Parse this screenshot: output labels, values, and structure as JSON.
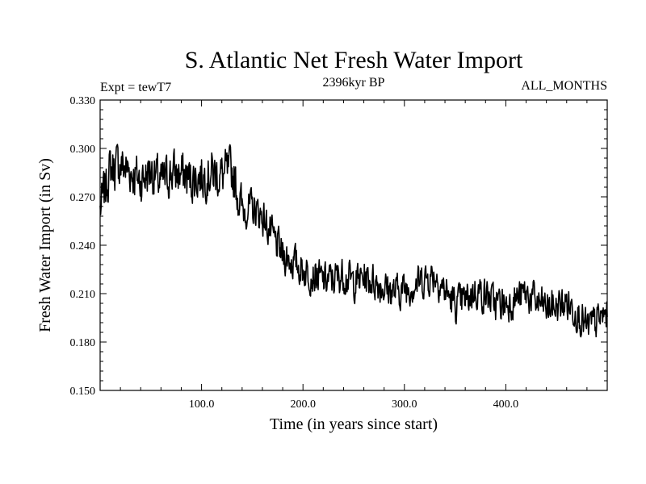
{
  "chart_data": {
    "type": "line",
    "title": "S. Atlantic Net Fresh Water Import",
    "subtitle_left": "Expt = tewT7",
    "subtitle_center": "2396kyr BP",
    "subtitle_right": "ALL_MONTHS",
    "xlabel": "Time (in years since start)",
    "ylabel": "Fresh Water Import (in Sv)",
    "xlim": [
      0,
      500
    ],
    "ylim": [
      0.15,
      0.33
    ],
    "x_major_ticks": [
      100,
      200,
      300,
      400
    ],
    "x_tick_labels": [
      "100.0",
      "200.0",
      "300.0",
      "400.0"
    ],
    "y_major_ticks": [
      0.15,
      0.18,
      0.21,
      0.24,
      0.27,
      0.3,
      0.33
    ],
    "y_tick_labels": [
      "0.150",
      "0.180",
      "0.210",
      "0.240",
      "0.270",
      "0.300",
      "0.330"
    ],
    "grid": false,
    "series": [
      {
        "name": "Net Fresh Water Import",
        "x": [
          0,
          10,
          20,
          30,
          40,
          50,
          60,
          70,
          80,
          90,
          100,
          110,
          120,
          130,
          140,
          150,
          160,
          170,
          180,
          190,
          200,
          210,
          220,
          230,
          240,
          250,
          260,
          270,
          280,
          290,
          300,
          310,
          320,
          330,
          340,
          350,
          360,
          370,
          380,
          390,
          400,
          410,
          420,
          430,
          440,
          450,
          460,
          470,
          480,
          490,
          500
        ],
        "values": [
          0.262,
          0.288,
          0.29,
          0.286,
          0.28,
          0.287,
          0.278,
          0.285,
          0.284,
          0.281,
          0.283,
          0.285,
          0.283,
          0.286,
          0.262,
          0.263,
          0.258,
          0.245,
          0.234,
          0.23,
          0.225,
          0.222,
          0.218,
          0.219,
          0.222,
          0.217,
          0.22,
          0.218,
          0.214,
          0.211,
          0.213,
          0.216,
          0.219,
          0.222,
          0.212,
          0.203,
          0.206,
          0.212,
          0.209,
          0.204,
          0.204,
          0.207,
          0.21,
          0.205,
          0.201,
          0.202,
          0.204,
          0.199,
          0.188,
          0.193,
          0.198
        ]
      }
    ]
  }
}
